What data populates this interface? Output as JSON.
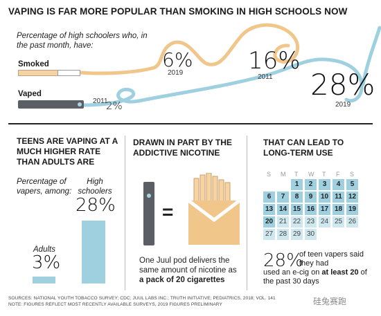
{
  "headline": "VAPING IS FAR MORE POPULAR THAN SMOKING IN HIGH SCHOOLS NOW",
  "subtitle": "Percentage of high schoolers who, in the past month, have:",
  "rows": {
    "smoked_label": "Smoked",
    "vaped_label": "Vaped"
  },
  "stats": {
    "smoked_2019_pct": "6%",
    "smoked_2019_year": "2019",
    "smoked_2011_pct": "16%",
    "smoked_2011_year": "2011",
    "vaped_2019_pct": "28%",
    "vaped_2019_year": "2019",
    "vaped_2011_year": "2011",
    "vaped_2011_pct": "2%"
  },
  "colors": {
    "smoke_wave": "#f0c68a",
    "vape_wave": "#9fd0e0",
    "device": "#5b5e64"
  },
  "section1": {
    "heading": "TEENS ARE VAPING AT A MUCH HIGHER RATE THAN ADULTS ARE",
    "percentage_label": "Percentage of vapers, among:",
    "hs_label": "High schoolers",
    "hs_pct": "28%",
    "hs_value": 28,
    "adults_label": "Adults",
    "adults_pct": "3%",
    "adults_value": 3
  },
  "section2": {
    "heading": "DRAWN IN PART BY THE ADDICTIVE NICOTINE",
    "equals": "=",
    "note_prefix": "One Juul pod delivers the same amount of nicotine as ",
    "note_bold": "a pack of 20 cigarettes"
  },
  "section3": {
    "heading": "THAT CAN LEAD TO LONG-TERM USE",
    "day_headers": [
      "S",
      "M",
      "T",
      "W",
      "T",
      "F",
      "S"
    ],
    "days": [
      "1",
      "2",
      "3",
      "4",
      "5",
      "6",
      "7",
      "8",
      "9",
      "10",
      "11",
      "12",
      "13",
      "14",
      "15",
      "16",
      "17",
      "18",
      "19",
      "20",
      "21",
      "22",
      "23",
      "24",
      "25",
      "26",
      "27",
      "28",
      "29",
      "30"
    ],
    "stat": "28%",
    "note_a": "of teen vapers said they had",
    "note_b_prefix": "used an e-cig on ",
    "note_b_bold": "at least 20",
    "note_b_suffix": " of the past 30 days"
  },
  "sources": {
    "line1": "SOURCES: NATIONAL YOUTH TOBACCO SURVEY; CDC; JUUL LABS INC.; TRUTH INITIATIVE; PEDIATRICS, 2018; VOL. 141",
    "line2": "NOTE: FIGURES REFLECT MOST RECENTLY AVAILABLE SURVEYS, 2019 FIGURES PRELIMINARY"
  },
  "watermark": "硅兔赛跑"
}
